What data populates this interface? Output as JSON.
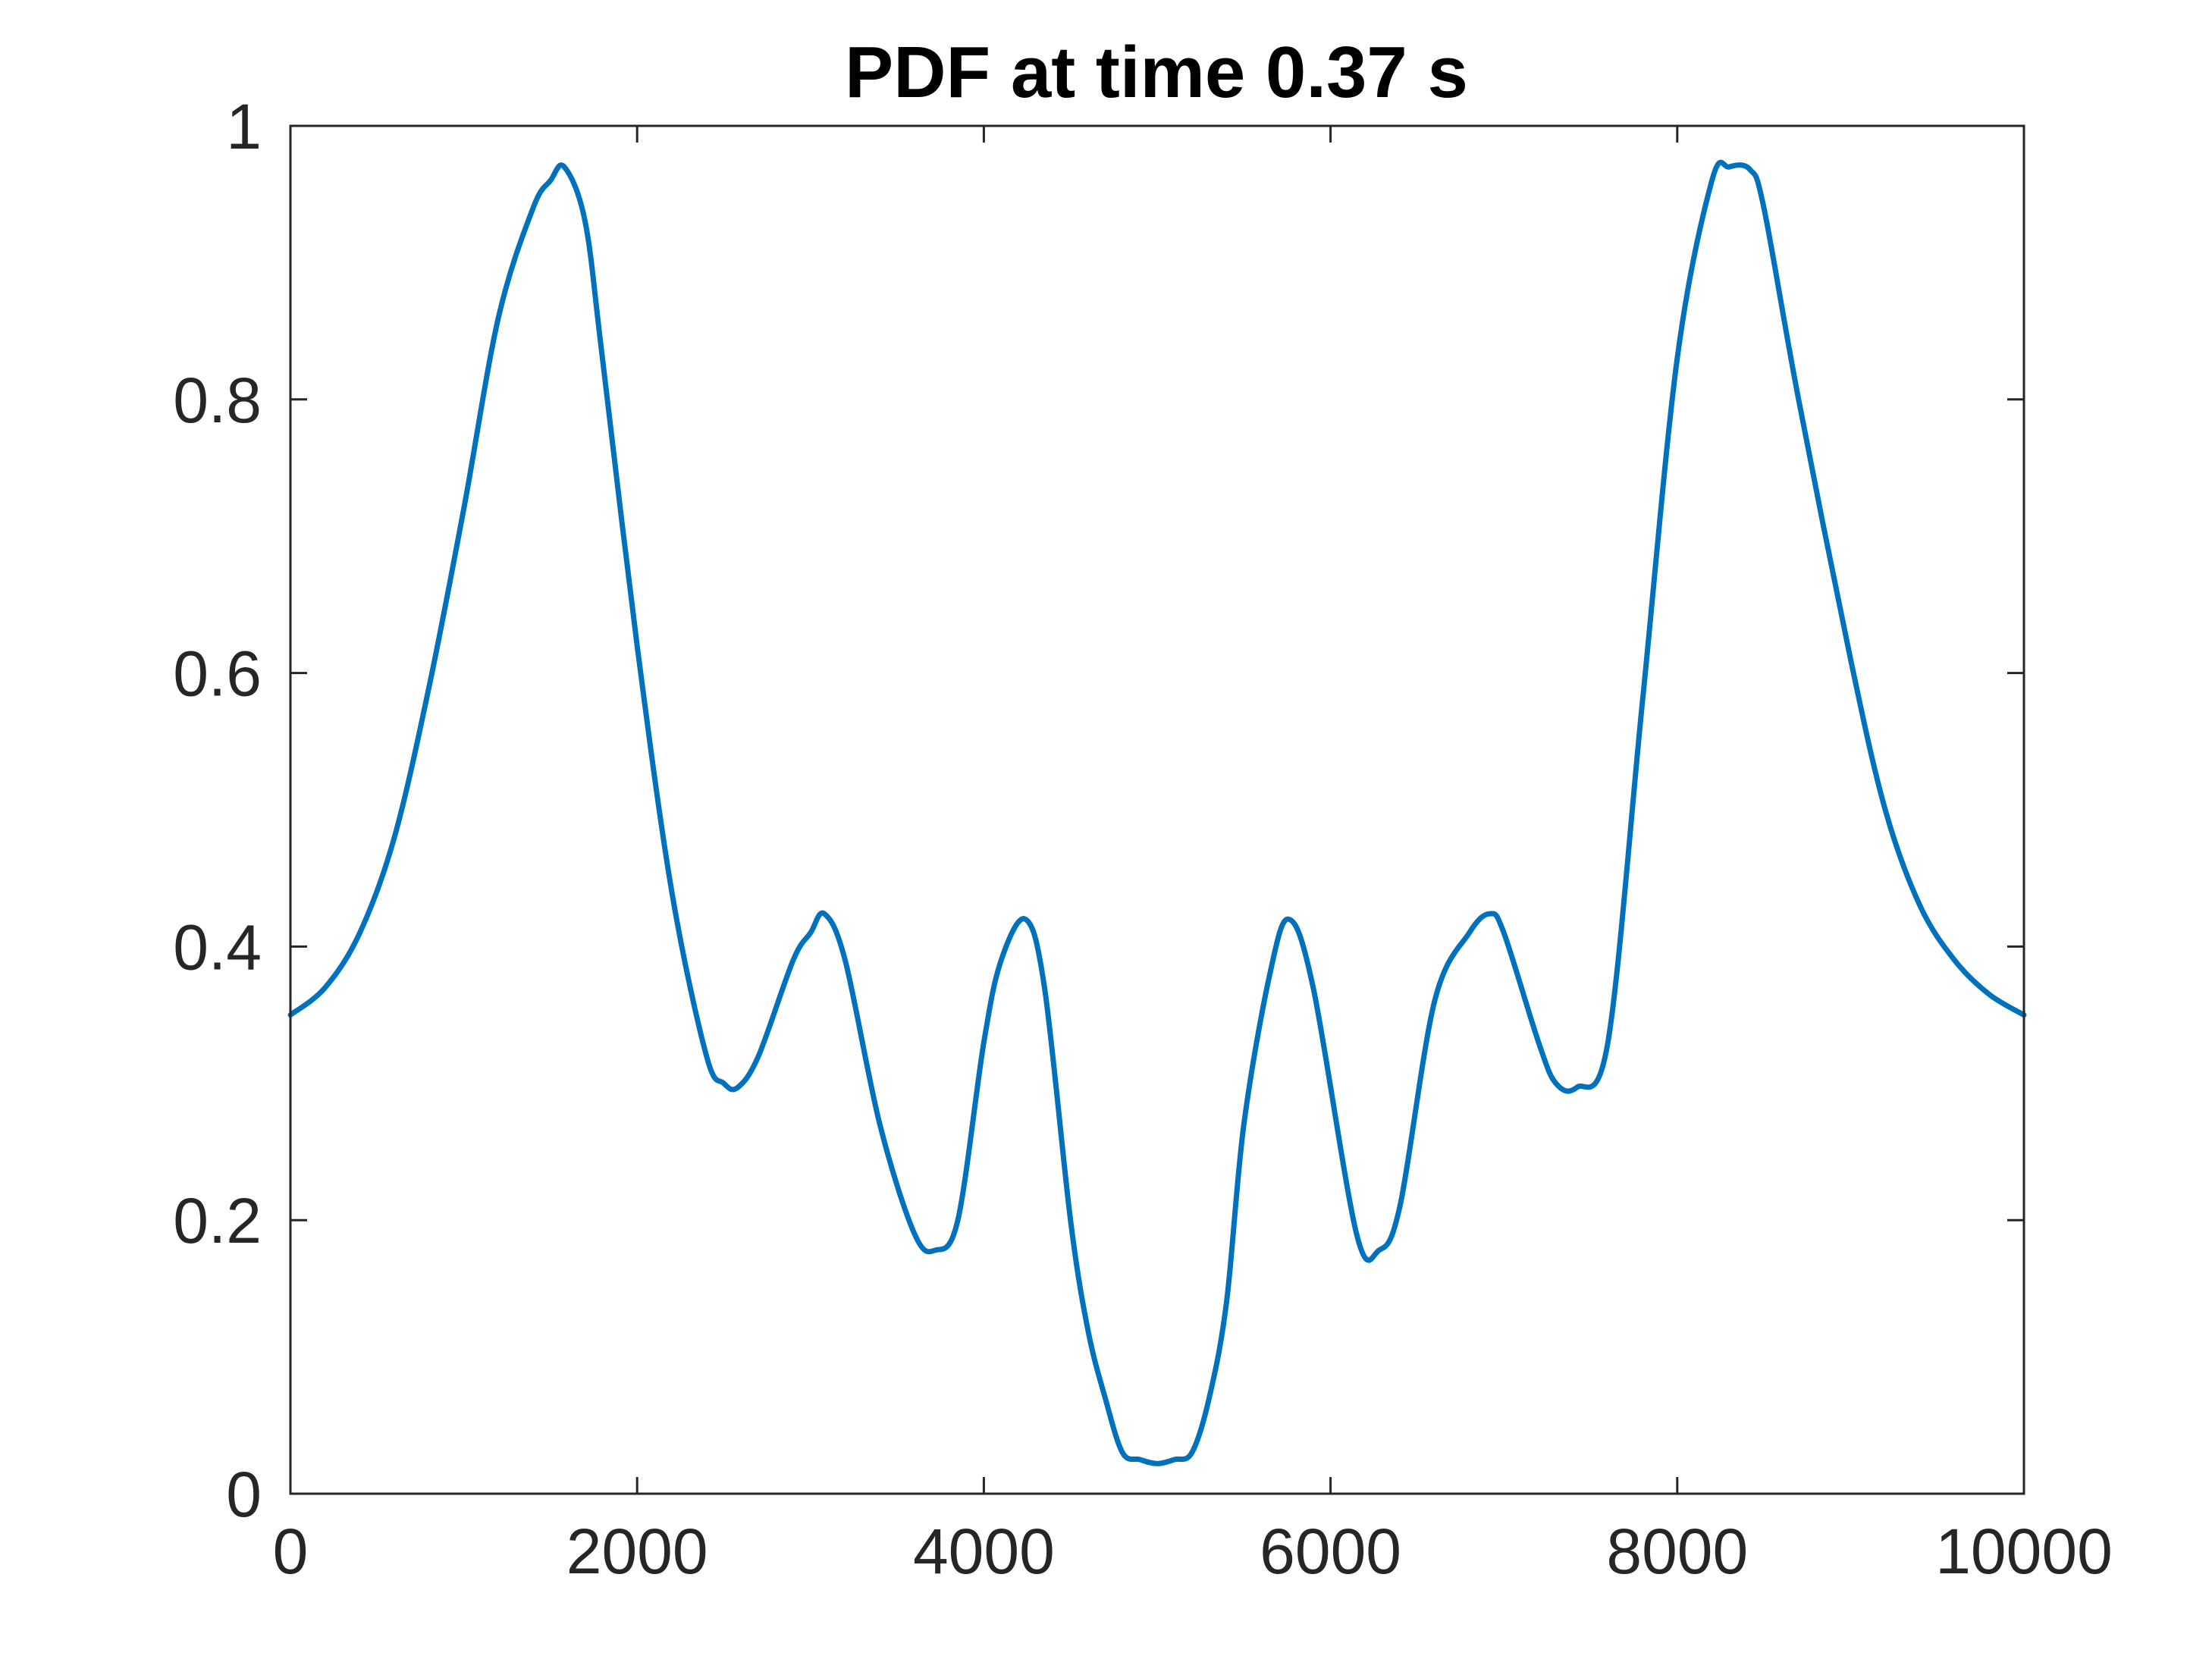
{
  "chart_data": {
    "type": "line",
    "title": "PDF at time 0.37 s",
    "xlabel": "",
    "ylabel": "",
    "xlim": [
      0,
      10000
    ],
    "ylim": [
      0,
      1
    ],
    "xticks": [
      0,
      2000,
      4000,
      6000,
      8000,
      10000
    ],
    "yticks": [
      0,
      0.2,
      0.4,
      0.6,
      0.8,
      1
    ],
    "xtick_labels": [
      "0",
      "2000",
      "4000",
      "6000",
      "8000",
      "10000"
    ],
    "ytick_labels": [
      "0",
      "0.2",
      "0.4",
      "0.6",
      "0.8",
      "1"
    ],
    "grid": false,
    "legend": "none",
    "colors": {
      "series": "#0072BD",
      "axes": "#262626",
      "background": "#ffffff"
    },
    "series": [
      {
        "x": [
          0,
          200,
          400,
          600,
          800,
          1000,
          1200,
          1400,
          1500,
          1580,
          1700,
          1800,
          2000,
          2200,
          2400,
          2500,
          2580,
          2700,
          2900,
          3000,
          3080,
          3200,
          3400,
          3600,
          3720,
          3850,
          4000,
          4100,
          4240,
          4350,
          4500,
          4600,
          4700,
          4800,
          4900,
          5000,
          5100,
          5200,
          5300,
          5400,
          5500,
          5650,
          5760,
          5900,
          6150,
          6280,
          6400,
          6600,
          6800,
          6920,
          7000,
          7200,
          7300,
          7420,
          7600,
          7800,
          8000,
          8200,
          8300,
          8420,
          8500,
          8700,
          9000,
          9200,
          9400,
          9600,
          9800,
          10000
        ],
        "y": [
          0.35,
          0.37,
          0.41,
          0.48,
          0.59,
          0.72,
          0.86,
          0.94,
          0.96,
          0.97,
          0.93,
          0.83,
          0.62,
          0.44,
          0.32,
          0.3,
          0.297,
          0.32,
          0.39,
          0.41,
          0.424,
          0.39,
          0.27,
          0.19,
          0.178,
          0.2,
          0.33,
          0.39,
          0.42,
          0.37,
          0.2,
          0.12,
          0.07,
          0.03,
          0.025,
          0.022,
          0.025,
          0.03,
          0.07,
          0.14,
          0.27,
          0.38,
          0.42,
          0.37,
          0.19,
          0.178,
          0.21,
          0.36,
          0.41,
          0.424,
          0.41,
          0.33,
          0.3,
          0.297,
          0.33,
          0.58,
          0.83,
          0.96,
          0.97,
          0.968,
          0.94,
          0.8,
          0.61,
          0.5,
          0.43,
          0.39,
          0.365,
          0.35
        ]
      }
    ]
  }
}
